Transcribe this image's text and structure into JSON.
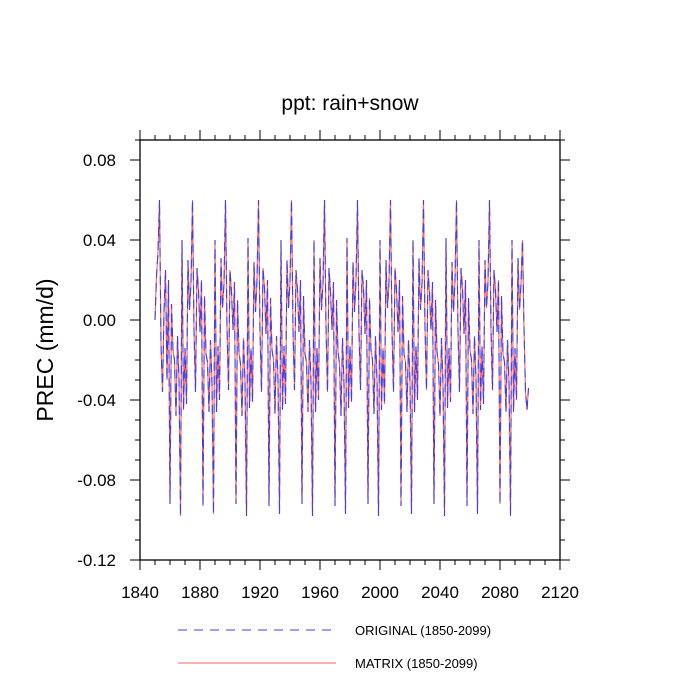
{
  "chart_data": {
    "type": "line",
    "title": "ppt: rain+snow",
    "xlabel": "",
    "ylabel": "PREC  (mm/d)",
    "xlim": [
      1840,
      2120
    ],
    "ylim": [
      -0.12,
      0.09
    ],
    "x_ticks": [
      1840,
      1880,
      1920,
      1960,
      2000,
      2040,
      2080,
      2120
    ],
    "x_tick_labels": [
      "1840",
      "1880",
      "1920",
      "1960",
      "2000",
      "2040",
      "2080",
      "2120"
    ],
    "y_ticks": [
      -0.12,
      -0.08,
      -0.04,
      0.0,
      0.04,
      0.08
    ],
    "y_tick_labels": [
      "-0.12",
      "-0.08",
      "-0.04",
      "0.00",
      "0.04",
      "0.08"
    ],
    "grid": false,
    "legend_position": "bottom",
    "x": [
      1850,
      1851,
      1852,
      1853,
      1854,
      1855,
      1856,
      1857,
      1858,
      1859,
      1860,
      1861,
      1862,
      1863,
      1864,
      1865,
      1866,
      1867,
      1868,
      1869,
      1870,
      1871,
      1872,
      1873,
      1874,
      1875,
      1876,
      1877,
      1878,
      1879,
      1880,
      1881,
      1882,
      1883,
      1884,
      1885,
      1886,
      1887,
      1888,
      1889,
      1890,
      1891,
      1892,
      1893,
      1894,
      1895,
      1896,
      1897,
      1898,
      1899,
      1900,
      1901,
      1902,
      1903,
      1904,
      1905,
      1906,
      1907,
      1908,
      1909,
      1910,
      1911,
      1912,
      1913,
      1914,
      1915,
      1916,
      1917,
      1918,
      1919,
      1920,
      1921,
      1922,
      1923,
      1924,
      1925,
      1926,
      1927,
      1928,
      1929,
      1930,
      1931,
      1932,
      1933,
      1934,
      1935,
      1936,
      1937,
      1938,
      1939,
      1940,
      1941,
      1942,
      1943,
      1944,
      1945,
      1946,
      1947,
      1948,
      1949,
      1950,
      1951,
      1952,
      1953,
      1954,
      1955,
      1956,
      1957,
      1958,
      1959,
      1960,
      1961,
      1962,
      1963,
      1964,
      1965,
      1966,
      1967,
      1968,
      1969,
      1970,
      1971,
      1972,
      1973,
      1974,
      1975,
      1976,
      1977,
      1978,
      1979,
      1980,
      1981,
      1982,
      1983,
      1984,
      1985,
      1986,
      1987,
      1988,
      1989,
      1990,
      1991,
      1992,
      1993,
      1994,
      1995,
      1996,
      1997,
      1998,
      1999,
      2000,
      2001,
      2002,
      2003,
      2004,
      2005,
      2006,
      2007,
      2008,
      2009,
      2010,
      2011,
      2012,
      2013,
      2014,
      2015,
      2016,
      2017,
      2018,
      2019,
      2020,
      2021,
      2022,
      2023,
      2024,
      2025,
      2026,
      2027,
      2028,
      2029,
      2030,
      2031,
      2032,
      2033,
      2034,
      2035,
      2036,
      2037,
      2038,
      2039,
      2040,
      2041,
      2042,
      2043,
      2044,
      2045,
      2046,
      2047,
      2048,
      2049,
      2050,
      2051,
      2052,
      2053,
      2054,
      2055,
      2056,
      2057,
      2058,
      2059,
      2060,
      2061,
      2062,
      2063,
      2064,
      2065,
      2066,
      2067,
      2068,
      2069,
      2070,
      2071,
      2072,
      2073,
      2074,
      2075,
      2076,
      2077,
      2078,
      2079,
      2080,
      2081,
      2082,
      2083,
      2084,
      2085,
      2086,
      2087,
      2088,
      2089,
      2090,
      2091,
      2092,
      2093,
      2094,
      2095,
      2096,
      2097,
      2098,
      2099
    ],
    "series": [
      {
        "name": "ORIGINAL (1850-2099)",
        "color": "#4040e0",
        "dash": "dashed",
        "values": [
          0.0,
          0.022,
          0.034,
          0.06,
          -0.012,
          -0.036,
          0.004,
          0.025,
          -0.03,
          0.02,
          -0.092,
          0.008,
          -0.015,
          -0.02,
          -0.048,
          -0.008,
          -0.03,
          -0.098,
          0.04,
          -0.045,
          -0.014,
          -0.042,
          0.03,
          0.005,
          0.019,
          0.06,
          -0.005,
          -0.036,
          0.026,
          0.015,
          -0.006,
          0.02,
          -0.093,
          0.012,
          -0.017,
          -0.021,
          -0.046,
          -0.01,
          -0.032,
          -0.097,
          0.04,
          -0.046,
          -0.013,
          -0.04,
          0.031,
          0.006,
          0.018,
          0.06,
          -0.004,
          -0.035,
          0.025,
          0.014,
          -0.005,
          0.019,
          -0.092,
          0.01,
          -0.016,
          -0.022,
          -0.048,
          -0.009,
          -0.031,
          -0.098,
          0.041,
          -0.044,
          -0.014,
          -0.041,
          0.029,
          0.004,
          0.02,
          0.06,
          -0.006,
          -0.036,
          0.026,
          0.016,
          -0.007,
          0.02,
          -0.093,
          0.011,
          -0.015,
          -0.02,
          -0.047,
          -0.008,
          -0.03,
          -0.097,
          0.04,
          -0.045,
          -0.013,
          -0.042,
          0.03,
          0.006,
          0.019,
          0.06,
          -0.005,
          -0.035,
          0.025,
          0.015,
          -0.006,
          0.02,
          -0.092,
          0.012,
          -0.017,
          -0.021,
          -0.046,
          -0.01,
          -0.031,
          -0.098,
          0.04,
          -0.046,
          -0.014,
          -0.04,
          0.031,
          0.005,
          0.018,
          0.06,
          -0.004,
          -0.036,
          0.026,
          0.014,
          -0.005,
          0.019,
          -0.093,
          0.01,
          -0.016,
          -0.022,
          -0.048,
          -0.009,
          -0.032,
          -0.097,
          0.041,
          -0.044,
          -0.013,
          -0.041,
          0.029,
          0.004,
          0.02,
          0.06,
          -0.006,
          -0.035,
          0.025,
          0.016,
          -0.007,
          0.02,
          -0.092,
          0.011,
          -0.015,
          -0.02,
          -0.047,
          -0.008,
          -0.03,
          -0.098,
          0.04,
          -0.045,
          -0.014,
          -0.042,
          0.03,
          0.006,
          0.019,
          0.06,
          -0.005,
          -0.036,
          0.026,
          0.015,
          -0.006,
          0.02,
          -0.093,
          0.012,
          -0.017,
          -0.021,
          -0.046,
          -0.01,
          -0.031,
          -0.097,
          0.04,
          -0.046,
          -0.013,
          -0.04,
          0.031,
          0.005,
          0.018,
          0.06,
          -0.004,
          -0.035,
          0.025,
          0.014,
          -0.005,
          0.019,
          -0.092,
          0.01,
          -0.016,
          -0.022,
          -0.048,
          -0.009,
          -0.032,
          -0.098,
          0.041,
          -0.044,
          -0.014,
          -0.041,
          0.029,
          0.004,
          0.02,
          0.06,
          -0.006,
          -0.036,
          0.026,
          0.016,
          -0.007,
          0.02,
          -0.093,
          0.011,
          -0.015,
          -0.02,
          -0.047,
          -0.008,
          -0.03,
          -0.097,
          0.04,
          -0.045,
          -0.013,
          -0.042,
          0.03,
          0.006,
          0.019,
          0.06,
          -0.005,
          -0.035,
          0.025,
          0.015,
          -0.006,
          0.02,
          -0.092,
          0.012,
          -0.017,
          -0.021,
          -0.046,
          -0.01,
          -0.031,
          -0.098,
          0.04,
          -0.046,
          -0.014,
          -0.04,
          0.031,
          0.005,
          0.018,
          0.04,
          -0.004,
          -0.036,
          -0.045,
          -0.034
        ]
      },
      {
        "name": "MATRIX (1850-2099)",
        "color": "#ff6060",
        "dash": "solid",
        "values": [
          0.0,
          0.022,
          0.034,
          0.06,
          -0.012,
          -0.036,
          0.004,
          0.025,
          -0.03,
          0.02,
          -0.092,
          0.008,
          -0.015,
          -0.02,
          -0.048,
          -0.008,
          -0.03,
          -0.098,
          0.04,
          -0.045,
          -0.014,
          -0.042,
          0.03,
          0.005,
          0.019,
          0.06,
          -0.005,
          -0.036,
          0.026,
          0.015,
          -0.006,
          0.02,
          -0.093,
          0.012,
          -0.017,
          -0.021,
          -0.046,
          -0.01,
          -0.032,
          -0.097,
          0.04,
          -0.046,
          -0.013,
          -0.04,
          0.031,
          0.006,
          0.018,
          0.06,
          -0.004,
          -0.035,
          0.025,
          0.014,
          -0.005,
          0.019,
          -0.092,
          0.01,
          -0.016,
          -0.022,
          -0.048,
          -0.009,
          -0.031,
          -0.098,
          0.041,
          -0.044,
          -0.014,
          -0.041,
          0.029,
          0.004,
          0.02,
          0.06,
          -0.006,
          -0.036,
          0.026,
          0.016,
          -0.007,
          0.02,
          -0.093,
          0.011,
          -0.015,
          -0.02,
          -0.047,
          -0.008,
          -0.03,
          -0.097,
          0.04,
          -0.045,
          -0.013,
          -0.042,
          0.03,
          0.006,
          0.019,
          0.06,
          -0.005,
          -0.035,
          0.025,
          0.015,
          -0.006,
          0.02,
          -0.092,
          0.012,
          -0.017,
          -0.021,
          -0.046,
          -0.01,
          -0.031,
          -0.098,
          0.04,
          -0.046,
          -0.014,
          -0.04,
          0.031,
          0.005,
          0.018,
          0.06,
          -0.004,
          -0.036,
          0.026,
          0.014,
          -0.005,
          0.019,
          -0.093,
          0.01,
          -0.016,
          -0.022,
          -0.048,
          -0.009,
          -0.032,
          -0.097,
          0.041,
          -0.044,
          -0.013,
          -0.041,
          0.029,
          0.004,
          0.02,
          0.06,
          -0.006,
          -0.035,
          0.025,
          0.016,
          -0.007,
          0.02,
          -0.092,
          0.011,
          -0.015,
          -0.02,
          -0.047,
          -0.008,
          -0.03,
          -0.098,
          0.04,
          -0.045,
          -0.014,
          -0.042,
          0.03,
          0.006,
          0.019,
          0.06,
          -0.005,
          -0.036,
          0.026,
          0.015,
          -0.006,
          0.02,
          -0.093,
          0.012,
          -0.017,
          -0.021,
          -0.046,
          -0.01,
          -0.031,
          -0.097,
          0.04,
          -0.046,
          -0.013,
          -0.04,
          0.031,
          0.005,
          0.018,
          0.06,
          -0.004,
          -0.035,
          0.025,
          0.014,
          -0.005,
          0.019,
          -0.092,
          0.01,
          -0.016,
          -0.022,
          -0.048,
          -0.009,
          -0.032,
          -0.098,
          0.041,
          -0.044,
          -0.014,
          -0.041,
          0.029,
          0.004,
          0.02,
          0.06,
          -0.006,
          -0.036,
          0.026,
          0.016,
          -0.007,
          0.02,
          -0.093,
          0.011,
          -0.015,
          -0.02,
          -0.047,
          -0.008,
          -0.03,
          -0.097,
          0.04,
          -0.045,
          -0.013,
          -0.042,
          0.03,
          0.006,
          0.019,
          0.06,
          -0.005,
          -0.035,
          0.025,
          0.015,
          -0.006,
          0.02,
          -0.092,
          0.012,
          -0.017,
          -0.021,
          -0.046,
          -0.01,
          -0.031,
          -0.098,
          0.04,
          -0.046,
          -0.014,
          -0.04,
          0.031,
          0.005,
          0.018,
          0.04,
          -0.004,
          -0.036,
          -0.045,
          -0.034
        ]
      }
    ]
  }
}
